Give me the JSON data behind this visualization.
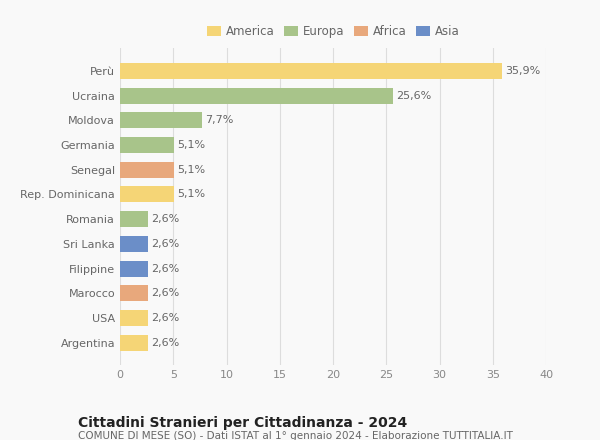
{
  "categories": [
    "Argentina",
    "USA",
    "Marocco",
    "Filippine",
    "Sri Lanka",
    "Romania",
    "Rep. Dominicana",
    "Senegal",
    "Germania",
    "Moldova",
    "Ucraina",
    "Perù"
  ],
  "values": [
    2.6,
    2.6,
    2.6,
    2.6,
    2.6,
    2.6,
    5.1,
    5.1,
    5.1,
    7.7,
    25.6,
    35.9
  ],
  "labels": [
    "2,6%",
    "2,6%",
    "2,6%",
    "2,6%",
    "2,6%",
    "2,6%",
    "5,1%",
    "5,1%",
    "5,1%",
    "7,7%",
    "25,6%",
    "35,9%"
  ],
  "continents": [
    "America",
    "America",
    "Africa",
    "Asia",
    "Asia",
    "Europa",
    "America",
    "Africa",
    "Europa",
    "Europa",
    "Europa",
    "America"
  ],
  "colors": {
    "America": "#F5D576",
    "Europa": "#A8C48A",
    "Africa": "#E8A87C",
    "Asia": "#6B8EC8"
  },
  "legend_order": [
    "America",
    "Europa",
    "Africa",
    "Asia"
  ],
  "xlim": [
    0,
    40
  ],
  "xticks": [
    0,
    5,
    10,
    15,
    20,
    25,
    30,
    35,
    40
  ],
  "title": "Cittadini Stranieri per Cittadinanza - 2024",
  "subtitle": "COMUNE DI MESE (SO) - Dati ISTAT al 1° gennaio 2024 - Elaborazione TUTTITALIA.IT",
  "bg_color": "#f9f9f9",
  "bar_height": 0.65,
  "label_fontsize": 8,
  "title_fontsize": 10,
  "subtitle_fontsize": 7.5,
  "tick_fontsize": 8,
  "legend_fontsize": 8.5
}
